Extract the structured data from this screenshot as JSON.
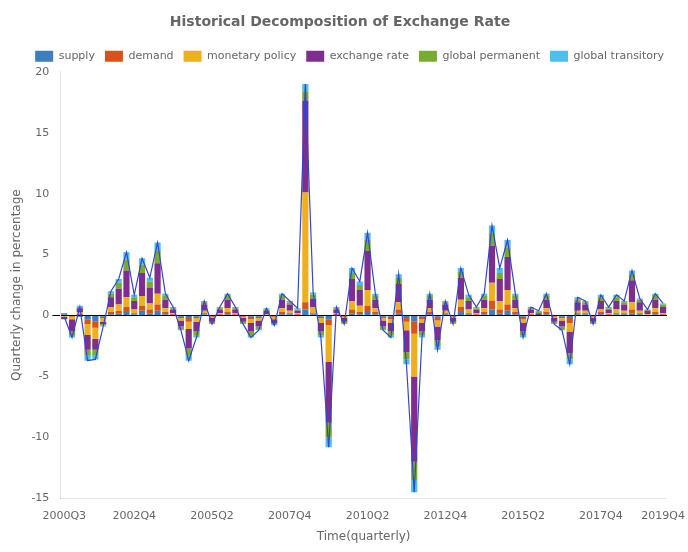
{
  "chart_data": {
    "type": "bar",
    "title": "Historical Decomposition of Exchange Rate",
    "xlabel": "Time(quarterly)",
    "ylabel": "Quarterly change in percentage",
    "stacked": true,
    "grid": false,
    "legend": "upper right",
    "ylim": [
      -15,
      20
    ],
    "yticks": [
      -15,
      -10,
      -5,
      0,
      5,
      10,
      15,
      20
    ],
    "categories": [
      "2000Q3",
      null,
      null,
      null,
      null,
      null,
      null,
      null,
      null,
      "2002Q4",
      null,
      null,
      null,
      null,
      null,
      null,
      null,
      null,
      null,
      "2005Q2",
      null,
      null,
      null,
      null,
      null,
      null,
      null,
      null,
      null,
      "2007Q4",
      null,
      null,
      null,
      null,
      null,
      null,
      null,
      null,
      null,
      "2010Q2",
      null,
      null,
      null,
      null,
      null,
      null,
      null,
      null,
      null,
      "2012Q4",
      null,
      null,
      null,
      null,
      null,
      null,
      null,
      null,
      null,
      "2015Q2",
      null,
      null,
      null,
      null,
      null,
      null,
      null,
      null,
      null,
      "2017Q4",
      null,
      null,
      null,
      null,
      null,
      null,
      null,
      "2019Q4"
    ],
    "series": [
      {
        "name": "supply",
        "color": "#3d7ebf",
        "values": [
          0.1,
          0.0,
          -0.1,
          -0.3,
          -0.5,
          -0.1,
          0.1,
          0.2,
          0.3,
          0.1,
          0.4,
          0.2,
          0.4,
          0.1,
          0.0,
          -0.1,
          -0.2,
          -0.1,
          0.1,
          0.0,
          0.0,
          0.1,
          0.0,
          0.0,
          -0.1,
          -0.1,
          0.0,
          0.0,
          0.1,
          0.1,
          0.0,
          0.5,
          0.1,
          -0.1,
          -0.3,
          0.0,
          0.0,
          0.2,
          0.1,
          0.3,
          0.1,
          -0.1,
          -0.1,
          0.2,
          -0.2,
          -0.5,
          -0.1,
          0.1,
          -0.1,
          0.1,
          0.0,
          0.3,
          0.1,
          0.0,
          0.1,
          0.5,
          0.2,
          0.4,
          0.1,
          -0.1,
          0.0,
          0.0,
          0.1,
          0.0,
          -0.1,
          -0.2,
          0.1,
          0.1,
          0.0,
          0.1,
          0.0,
          0.1,
          0.1,
          0.2,
          0.1,
          0.0,
          0.1,
          0.0
        ]
      },
      {
        "name": "demand",
        "color": "#d95319",
        "values": [
          0.1,
          -0.1,
          0.1,
          -0.4,
          -0.5,
          -0.1,
          0.2,
          0.2,
          0.4,
          0.1,
          0.4,
          0.3,
          0.5,
          0.2,
          0.1,
          -0.1,
          -0.3,
          -0.1,
          0.1,
          -0.1,
          0.1,
          0.2,
          0.1,
          -0.1,
          -0.2,
          -0.1,
          0.0,
          -0.1,
          0.2,
          0.1,
          0.1,
          0.6,
          0.1,
          -0.1,
          -0.5,
          0.1,
          -0.1,
          0.3,
          0.2,
          0.5,
          0.2,
          -0.1,
          -0.2,
          0.3,
          -0.3,
          -1.0,
          -0.2,
          0.2,
          -0.3,
          0.1,
          -0.1,
          0.4,
          0.1,
          0.1,
          0.2,
          0.7,
          0.3,
          0.5,
          0.2,
          -0.2,
          0.1,
          0.0,
          0.2,
          -0.1,
          -0.1,
          -0.4,
          0.1,
          0.1,
          -0.1,
          0.2,
          0.1,
          0.1,
          0.1,
          0.3,
          0.1,
          0.0,
          0.2,
          0.1
        ]
      },
      {
        "name": "monetary policy",
        "color": "#edb120",
        "values": [
          -0.1,
          -0.2,
          0.2,
          -0.9,
          -0.9,
          -0.3,
          0.4,
          0.5,
          0.8,
          0.3,
          0.8,
          0.5,
          0.9,
          0.3,
          0.1,
          -0.2,
          -0.6,
          -0.3,
          0.2,
          -0.1,
          0.1,
          0.3,
          0.1,
          -0.1,
          -0.3,
          -0.2,
          0.1,
          -0.2,
          0.3,
          0.2,
          0.1,
          9.0,
          0.5,
          -0.4,
          -3.0,
          0.1,
          -0.1,
          0.7,
          0.5,
          1.3,
          0.3,
          -0.2,
          -0.3,
          0.6,
          -0.7,
          -3.5,
          -0.3,
          0.3,
          -0.5,
          0.2,
          -0.1,
          0.6,
          0.3,
          0.1,
          0.3,
          1.5,
          0.7,
          1.2,
          0.3,
          -0.3,
          0.1,
          0.0,
          0.3,
          -0.1,
          -0.2,
          -0.7,
          0.2,
          0.2,
          -0.1,
          0.2,
          0.1,
          0.3,
          0.2,
          0.6,
          0.2,
          0.1,
          0.3,
          0.1
        ]
      },
      {
        "name": "exchange rate",
        "color": "#7e2f8e",
        "values": [
          -0.2,
          -1.0,
          0.3,
          -1.2,
          -0.9,
          -0.2,
          0.8,
          1.3,
          2.2,
          0.7,
          1.9,
          1.3,
          2.5,
          0.7,
          0.3,
          -0.5,
          -1.6,
          -0.8,
          0.5,
          -0.3,
          0.3,
          0.7,
          0.3,
          -0.3,
          -0.7,
          -0.5,
          0.3,
          -0.3,
          0.7,
          0.5,
          0.2,
          7.5,
          0.7,
          -0.7,
          -5.0,
          0.3,
          -0.3,
          1.8,
          1.3,
          3.2,
          0.7,
          -0.5,
          -0.7,
          1.5,
          -1.8,
          -7.0,
          -0.7,
          0.7,
          -1.1,
          0.5,
          -0.3,
          1.8,
          0.7,
          0.3,
          0.7,
          3.0,
          1.8,
          2.7,
          0.7,
          -0.7,
          0.3,
          0.2,
          0.7,
          -0.3,
          -0.5,
          -1.8,
          0.7,
          0.5,
          -0.3,
          0.7,
          0.3,
          0.7,
          0.5,
          1.8,
          0.7,
          0.3,
          0.7,
          0.5
        ]
      },
      {
        "name": "global permanent",
        "color": "#77ac30",
        "values": [
          0.0,
          -0.3,
          0.1,
          -0.5,
          -0.5,
          -0.1,
          0.3,
          0.5,
          0.9,
          0.3,
          0.7,
          0.5,
          1.0,
          0.3,
          0.1,
          -0.2,
          -0.6,
          -0.3,
          0.2,
          -0.1,
          0.1,
          0.3,
          0.1,
          -0.1,
          -0.3,
          -0.2,
          0.1,
          -0.1,
          0.3,
          0.2,
          0.1,
          0.8,
          0.3,
          -0.3,
          -1.2,
          0.1,
          -0.1,
          0.5,
          0.4,
          0.9,
          0.3,
          -0.2,
          -0.3,
          0.5,
          -0.6,
          -1.5,
          -0.3,
          0.3,
          -0.5,
          0.2,
          -0.1,
          0.5,
          0.3,
          0.1,
          0.3,
          1.0,
          0.5,
          0.8,
          0.3,
          -0.3,
          0.1,
          0.1,
          0.3,
          -0.1,
          -0.2,
          -0.5,
          0.2,
          0.2,
          -0.1,
          0.3,
          0.1,
          0.3,
          0.2,
          0.5,
          0.2,
          0.1,
          0.3,
          0.2
        ]
      },
      {
        "name": "global transitory",
        "color": "#4dbeee",
        "values": [
          0.0,
          -0.2,
          0.1,
          -0.4,
          -0.3,
          -0.1,
          0.2,
          0.3,
          0.6,
          0.2,
          0.5,
          0.3,
          0.7,
          0.2,
          0.1,
          -0.1,
          -0.4,
          -0.2,
          0.1,
          -0.1,
          0.1,
          0.2,
          0.1,
          -0.1,
          -0.2,
          -0.1,
          0.1,
          -0.1,
          0.2,
          0.1,
          0.1,
          0.6,
          0.2,
          -0.2,
          -0.8,
          0.1,
          -0.1,
          0.4,
          0.3,
          0.6,
          0.2,
          -0.1,
          -0.2,
          0.3,
          -0.4,
          -1.0,
          -0.2,
          0.2,
          -0.3,
          0.1,
          -0.1,
          0.3,
          0.2,
          0.1,
          0.2,
          0.7,
          0.4,
          0.6,
          0.2,
          -0.2,
          0.1,
          0.1,
          0.2,
          -0.1,
          -0.1,
          -0.4,
          0.2,
          0.1,
          -0.1,
          0.2,
          0.1,
          0.2,
          0.1,
          0.3,
          0.1,
          0.0,
          0.2,
          0.1
        ]
      },
      {
        "type": "line",
        "color": "#3545c8",
        "values": [
          -0.1,
          -1.8,
          0.7,
          -3.7,
          -3.6,
          -0.9,
          2.0,
          3.0,
          5.2,
          1.7,
          4.7,
          3.1,
          6.0,
          1.8,
          0.7,
          -1.2,
          -3.7,
          -1.8,
          1.2,
          -0.7,
          0.7,
          1.8,
          0.7,
          -0.7,
          -1.8,
          -1.2,
          0.6,
          -0.8,
          1.8,
          1.2,
          0.6,
          19.0,
          1.9,
          -1.8,
          -10.8,
          0.7,
          -0.7,
          3.9,
          2.8,
          6.8,
          1.8,
          -1.2,
          -1.8,
          3.4,
          -4.0,
          -14.5,
          -1.8,
          1.8,
          -2.8,
          1.2,
          -0.7,
          3.9,
          1.7,
          0.7,
          1.8,
          7.4,
          3.9,
          6.2,
          1.8,
          -1.8,
          0.7,
          0.4,
          1.8,
          -0.7,
          -1.2,
          -4.0,
          1.5,
          1.2,
          -0.7,
          1.7,
          0.7,
          1.7,
          1.2,
          3.7,
          1.4,
          0.5,
          1.8,
          1.0
        ]
      }
    ]
  }
}
